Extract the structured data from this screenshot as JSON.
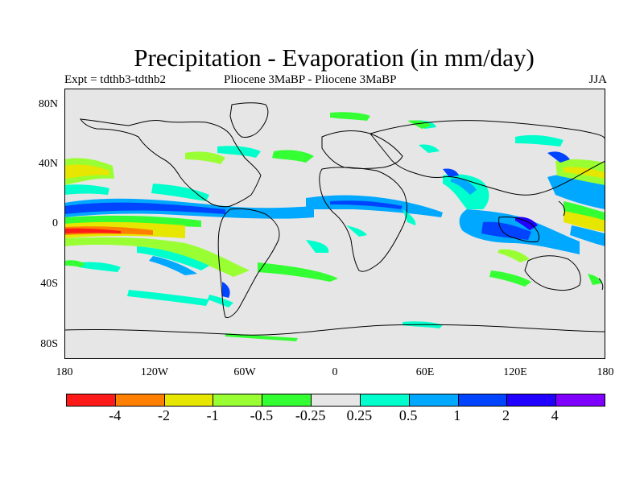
{
  "title": "Precipitation - Evaporation (in mm/day)",
  "subtitle_left": "Expt = tdthb3-tdthb2",
  "subtitle_center": "Pliocene   3MaBP - Pliocene   3MaBP",
  "subtitle_right": "JJA",
  "lat_ticks": [
    "80N",
    "40N",
    "0",
    "40S",
    "80S"
  ],
  "lon_ticks": [
    "180",
    "120W",
    "60W",
    "0",
    "60E",
    "120E",
    "180"
  ],
  "colorbar": {
    "colors": [
      "#ff1a1a",
      "#ff8000",
      "#e6e600",
      "#99ff33",
      "#33ff33",
      "#e6e6e6",
      "#00ffcc",
      "#00a8ff",
      "#0044ff",
      "#2200ff",
      "#8000ff"
    ],
    "labels": [
      "-4",
      "-2",
      "-1",
      "-0.5",
      "-0.25",
      "0.25",
      "0.5",
      "1",
      "2",
      "4"
    ]
  },
  "map": {
    "background": "#e6e6e6",
    "coastline_color": "#000000"
  }
}
